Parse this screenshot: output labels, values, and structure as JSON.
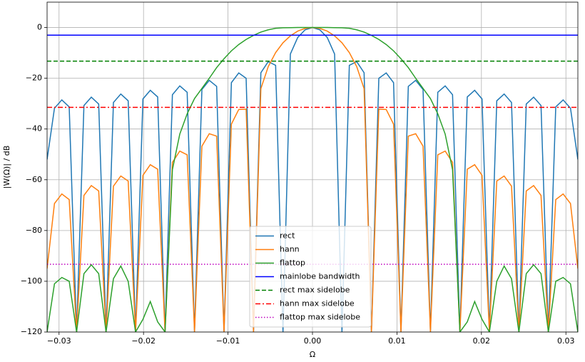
{
  "chart_data": {
    "type": "line",
    "x_label": "Ω",
    "y_label": "|W(Ω)| / dB",
    "xlim": [
      -0.031416,
      0.031416
    ],
    "ylim": [
      -120,
      10
    ],
    "grid": true,
    "legend": "lower center",
    "xticks": [
      {
        "value": -0.03,
        "label": "−0.03"
      },
      {
        "value": -0.02,
        "label": "−0.02"
      },
      {
        "value": -0.01,
        "label": "−0.01"
      },
      {
        "value": 0,
        "label": "0.00"
      },
      {
        "value": 0.01,
        "label": "0.01"
      },
      {
        "value": 0.02,
        "label": "0.02"
      },
      {
        "value": 0.03,
        "label": "0.03"
      }
    ],
    "yticks": [
      {
        "value": -120,
        "label": "−120"
      },
      {
        "value": -100,
        "label": "−100"
      },
      {
        "value": -80,
        "label": "−80"
      },
      {
        "value": -60,
        "label": "−60"
      },
      {
        "value": -40,
        "label": "−40"
      },
      {
        "value": -20,
        "label": "−20"
      },
      0
    ],
    "x": [
      -0.031416,
      -0.030543,
      -0.029671,
      -0.028798,
      -0.027925,
      -0.027053,
      -0.02618,
      -0.025307,
      -0.024435,
      -0.023562,
      -0.022689,
      -0.021817,
      -0.020944,
      -0.020071,
      -0.019199,
      -0.018326,
      -0.017453,
      -0.016581,
      -0.015708,
      -0.014835,
      -0.013963,
      -0.01309,
      -0.012217,
      -0.011345,
      -0.010472,
      -0.009599,
      -0.008727,
      -0.007854,
      -0.006981,
      -0.006109,
      -0.005236,
      -0.004363,
      -0.003491,
      -0.002618,
      -0.001745,
      -0.000873,
      0,
      0.000873,
      0.001745,
      0.002618,
      0.003491,
      0.004363,
      0.005236,
      0.006109,
      0.006981,
      0.007854,
      0.008727,
      0.009599,
      0.010472,
      0.011345,
      0.012217,
      0.01309,
      0.013963,
      0.014835,
      0.015708,
      0.016581,
      0.017453,
      0.018326,
      0.019199,
      0.020071,
      0.020944,
      0.021817,
      0.022689,
      0.023562,
      0.024435,
      0.025307,
      0.02618,
      0.027053,
      0.027925,
      0.028798,
      0.029671,
      0.030543,
      0.031416
    ],
    "series": [
      {
        "name": "rect",
        "color": "#1f77b4",
        "linestyle": "solid",
        "values": [
          -52,
          -31.79,
          -28.53,
          -31.28,
          -120,
          -30.74,
          -27.44,
          -30.16,
          -120,
          -29.54,
          -26.2,
          -28.87,
          -120,
          -28.15,
          -24.75,
          -27.36,
          -120,
          -26.49,
          -23.01,
          -25.52,
          -120,
          -24.43,
          -20.83,
          -23.19,
          -120,
          -21.74,
          -17.9,
          -20,
          -120,
          -17.81,
          -13.46,
          -14.89,
          -120,
          -10.45,
          -3.92,
          -0.91,
          0,
          -0.91,
          -3.92,
          -10.45,
          -120,
          -14.89,
          -13.46,
          -17.81,
          -120,
          -20,
          -17.9,
          -21.74,
          -120,
          -23.19,
          -20.83,
          -24.43,
          -120,
          -25.52,
          -23.01,
          -26.49,
          -120,
          -27.36,
          -24.75,
          -28.15,
          -120,
          -28.87,
          -26.2,
          -29.54,
          -120,
          -30.16,
          -27.44,
          -30.74,
          -120,
          -31.28,
          -28.53,
          -31.79,
          -52
        ]
      },
      {
        "name": "hann",
        "color": "#ff7f0e",
        "linestyle": "solid",
        "values": [
          -95,
          -69.36,
          -65.59,
          -67.81,
          -120,
          -66.17,
          -62.29,
          -64.41,
          -120,
          -62.52,
          -58.51,
          -60.48,
          -120,
          -58.27,
          -54.07,
          -55.84,
          -120,
          -53.16,
          -48.7,
          -50.16,
          -120,
          -46.75,
          -41.85,
          -42.8,
          -120,
          -38.08,
          -32.3,
          -32.18,
          -120,
          -24.1,
          -15.4,
          -9.89,
          -6.02,
          -3.27,
          -1.42,
          -0.35,
          0,
          -0.35,
          -1.42,
          -3.27,
          -6.02,
          -9.89,
          -15.4,
          -24.1,
          -120,
          -32.18,
          -32.3,
          -38.08,
          -120,
          -42.8,
          -41.85,
          -46.75,
          -120,
          -50.16,
          -48.7,
          -53.16,
          -120,
          -55.84,
          -54.07,
          -58.27,
          -120,
          -60.48,
          -58.51,
          -62.52,
          -120,
          -64.41,
          -62.29,
          -66.17,
          -120,
          -67.81,
          -65.59,
          -69.36,
          -95
        ]
      },
      {
        "name": "flattop",
        "color": "#2ca02c",
        "linestyle": "solid",
        "values": [
          -120,
          -101,
          -98.5,
          -100,
          -120,
          -97,
          -93.5,
          -97,
          -120,
          -99,
          -94,
          -100,
          -120,
          -115,
          -108,
          -116,
          -120,
          -56,
          -42,
          -34,
          -28,
          -24,
          -20,
          -15.8,
          -12.3,
          -9.2,
          -6.7,
          -4.7,
          -3.1,
          -1.8,
          -0.9,
          -0.3,
          -0.1,
          -0.05,
          0,
          0,
          0,
          0,
          0,
          -0.05,
          -0.1,
          -0.3,
          -0.9,
          -1.8,
          -3.1,
          -4.7,
          -6.7,
          -9.2,
          -12.3,
          -15.8,
          -20,
          -24,
          -28,
          -34,
          -42,
          -56,
          -120,
          -116,
          -108,
          -115,
          -120,
          -100,
          -94,
          -99,
          -120,
          -97,
          -93.5,
          -97,
          -120,
          -100,
          -98.5,
          -101,
          -120
        ]
      },
      {
        "name": "mainlobe bandwidth",
        "color": "#0000ff",
        "linestyle": "solid",
        "y": -3.01
      },
      {
        "name": "rect max sidelobe",
        "color": "#008000",
        "linestyle": "dashed",
        "y": -13.26
      },
      {
        "name": "hann max sidelobe",
        "color": "#ff0000",
        "linestyle": "dashdot",
        "y": -31.47
      },
      {
        "name": "flattop max sidelobe",
        "color": "#bf00bf",
        "linestyle": "dotted",
        "y": -93.3
      }
    ]
  }
}
